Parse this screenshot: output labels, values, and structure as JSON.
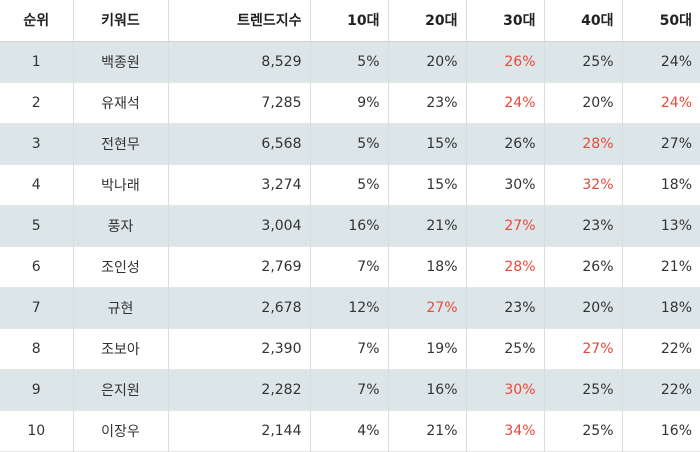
{
  "table": {
    "headers": [
      "순위",
      "키워드",
      "트렌드지수",
      "10대",
      "20대",
      "30대",
      "40대",
      "50대"
    ],
    "highlight_color": "#e8483a",
    "stripe_color": "#dce6e8",
    "rows": [
      {
        "rank": "1",
        "keyword": "백종원",
        "index": "8,529",
        "age10": "5%",
        "age20": "20%",
        "age30": "26%",
        "age40": "25%",
        "age50": "24%",
        "highlight": [
          "age30"
        ]
      },
      {
        "rank": "2",
        "keyword": "유재석",
        "index": "7,285",
        "age10": "9%",
        "age20": "23%",
        "age30": "24%",
        "age40": "20%",
        "age50": "24%",
        "highlight": [
          "age30",
          "age50"
        ]
      },
      {
        "rank": "3",
        "keyword": "전현무",
        "index": "6,568",
        "age10": "5%",
        "age20": "15%",
        "age30": "26%",
        "age40": "28%",
        "age50": "27%",
        "highlight": [
          "age40"
        ]
      },
      {
        "rank": "4",
        "keyword": "박나래",
        "index": "3,274",
        "age10": "5%",
        "age20": "15%",
        "age30": "30%",
        "age40": "32%",
        "age50": "18%",
        "highlight": [
          "age40"
        ]
      },
      {
        "rank": "5",
        "keyword": "풍자",
        "index": "3,004",
        "age10": "16%",
        "age20": "21%",
        "age30": "27%",
        "age40": "23%",
        "age50": "13%",
        "highlight": [
          "age30"
        ]
      },
      {
        "rank": "6",
        "keyword": "조인성",
        "index": "2,769",
        "age10": "7%",
        "age20": "18%",
        "age30": "28%",
        "age40": "26%",
        "age50": "21%",
        "highlight": [
          "age30"
        ]
      },
      {
        "rank": "7",
        "keyword": "규현",
        "index": "2,678",
        "age10": "12%",
        "age20": "27%",
        "age30": "23%",
        "age40": "20%",
        "age50": "18%",
        "highlight": [
          "age20"
        ]
      },
      {
        "rank": "8",
        "keyword": "조보아",
        "index": "2,390",
        "age10": "7%",
        "age20": "19%",
        "age30": "25%",
        "age40": "27%",
        "age50": "22%",
        "highlight": [
          "age40"
        ]
      },
      {
        "rank": "9",
        "keyword": "은지원",
        "index": "2,282",
        "age10": "7%",
        "age20": "16%",
        "age30": "30%",
        "age40": "25%",
        "age50": "22%",
        "highlight": [
          "age30"
        ]
      },
      {
        "rank": "10",
        "keyword": "이장우",
        "index": "2,144",
        "age10": "4%",
        "age20": "21%",
        "age30": "34%",
        "age40": "25%",
        "age50": "16%",
        "highlight": [
          "age30"
        ]
      }
    ]
  }
}
